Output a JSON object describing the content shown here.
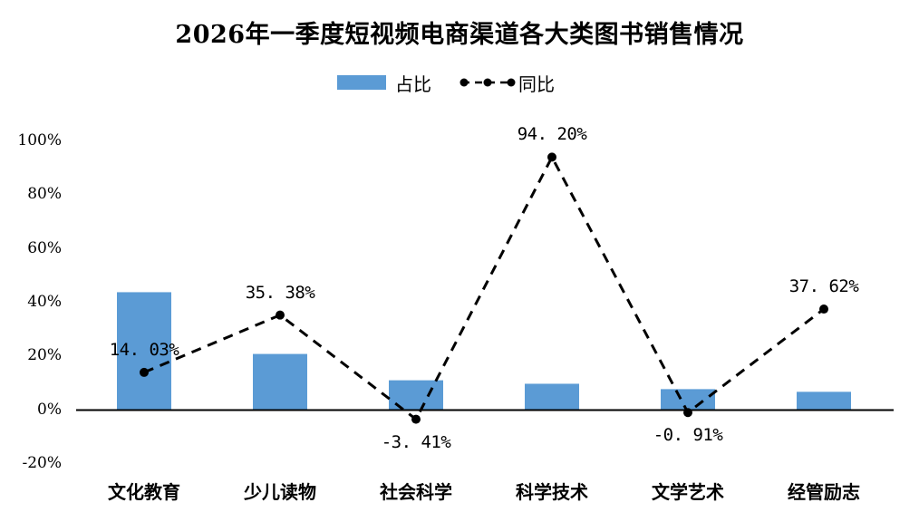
{
  "chart_data": {
    "type": "bar",
    "title": "2026年一季度短视频电商渠道各大类图书销售情况",
    "xlabel": "",
    "ylabel": "",
    "ylim": [
      -20,
      100
    ],
    "yticks": [
      "100%",
      "80%",
      "60%",
      "40%",
      "20%",
      "0%",
      "-20%"
    ],
    "grid": false,
    "legend_position": "top",
    "categories": [
      "文化教育",
      "少儿读物",
      "社会科学",
      "科学技术",
      "文学艺术",
      "经管励志"
    ],
    "series": [
      {
        "name": "占比",
        "type": "bar",
        "color": "#5B9BD5",
        "values": [
          43.9,
          20.9,
          11.1,
          9.8,
          7.8,
          6.8
        ]
      },
      {
        "name": "同比",
        "type": "line",
        "style": "dashed",
        "marker": "circle",
        "color": "#000000",
        "values": [
          14.03,
          35.38,
          -3.41,
          94.2,
          -0.91,
          37.62
        ],
        "labels": [
          "14.03%",
          "35.38%",
          "-3.41%",
          "94.20%",
          "-0.91%",
          "37.62%"
        ]
      }
    ]
  },
  "legend": {
    "bar_label": "占比",
    "line_label": "同比"
  }
}
